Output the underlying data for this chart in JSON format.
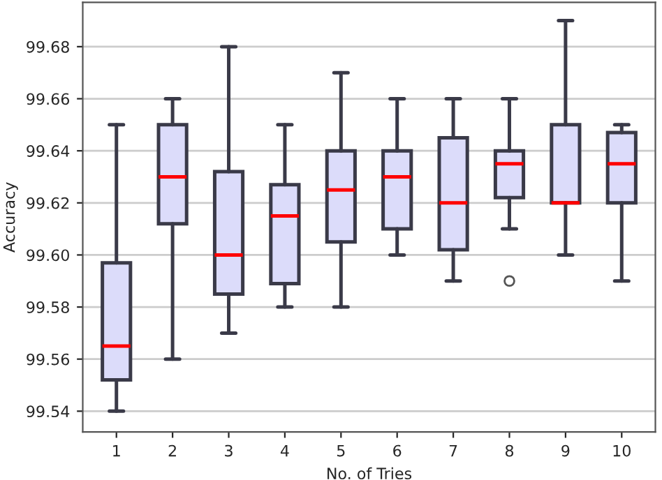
{
  "chart_data": {
    "type": "box",
    "xlabel": "No. of Tries",
    "ylabel": "Accuracy",
    "categories": [
      "1",
      "2",
      "3",
      "4",
      "5",
      "6",
      "7",
      "8",
      "9",
      "10"
    ],
    "boxes": [
      {
        "low": 99.54,
        "q1": 99.552,
        "median": 99.565,
        "q3": 99.597,
        "high": 99.65
      },
      {
        "low": 99.56,
        "q1": 99.612,
        "median": 99.63,
        "q3": 99.65,
        "high": 99.66
      },
      {
        "low": 99.57,
        "q1": 99.585,
        "median": 99.6,
        "q3": 99.632,
        "high": 99.68
      },
      {
        "low": 99.58,
        "q1": 99.589,
        "median": 99.615,
        "q3": 99.627,
        "high": 99.65
      },
      {
        "low": 99.58,
        "q1": 99.605,
        "median": 99.625,
        "q3": 99.64,
        "high": 99.67
      },
      {
        "low": 99.6,
        "q1": 99.61,
        "median": 99.63,
        "q3": 99.64,
        "high": 99.66
      },
      {
        "low": 99.59,
        "q1": 99.602,
        "median": 99.62,
        "q3": 99.645,
        "high": 99.66
      },
      {
        "low": 99.61,
        "q1": 99.622,
        "median": 99.635,
        "q3": 99.64,
        "high": 99.66,
        "outliers": [
          99.59
        ]
      },
      {
        "low": 99.6,
        "q1": 99.62,
        "median": 99.62,
        "q3": 99.65,
        "high": 99.69
      },
      {
        "low": 99.59,
        "q1": 99.62,
        "median": 99.635,
        "q3": 99.647,
        "high": 99.65
      }
    ],
    "color": "#dcdcfa",
    "ylim": [
      99.532,
      99.697
    ],
    "yticks": [
      {
        "value": 99.54,
        "label": "99.54"
      },
      {
        "value": 99.56,
        "label": "99.56"
      },
      {
        "value": 99.58,
        "label": "99.58"
      },
      {
        "value": 99.6,
        "label": "99.60"
      },
      {
        "value": 99.62,
        "label": "99.62"
      },
      {
        "value": 99.64,
        "label": "99.64"
      },
      {
        "value": 99.66,
        "label": "99.66"
      },
      {
        "value": 99.68,
        "label": "99.68"
      }
    ],
    "grid": "y"
  }
}
